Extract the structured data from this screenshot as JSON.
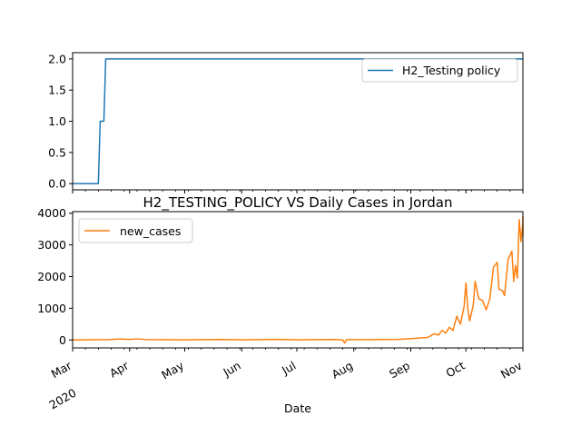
{
  "chart_data": [
    {
      "type": "line",
      "title": "",
      "xlabel": "",
      "ylabel": "",
      "x_range": [
        "2020-03-01",
        "2020-11-01"
      ],
      "ylim": [
        -0.1,
        2.1
      ],
      "yticks": [
        "0.0",
        "0.5",
        "1.0",
        "1.5",
        "2.0"
      ],
      "legend_position": "upper right",
      "series": [
        {
          "name": "H2_Testing policy",
          "color": "#1f77b4",
          "points": [
            {
              "x": "2020-03-01",
              "y": 0
            },
            {
              "x": "2020-03-15",
              "y": 0
            },
            {
              "x": "2020-03-16",
              "y": 1
            },
            {
              "x": "2020-03-18",
              "y": 1
            },
            {
              "x": "2020-03-19",
              "y": 2
            },
            {
              "x": "2020-11-01",
              "y": 2
            }
          ]
        }
      ]
    },
    {
      "type": "line",
      "title": "H2_TESTING_POLICY VS Daily Cases in Jordan",
      "xlabel": "Date",
      "ylabel": "",
      "x_range": [
        "2020-03-01",
        "2020-11-01"
      ],
      "ylim": [
        -250,
        4050
      ],
      "yticks": [
        "0",
        "1000",
        "2000",
        "3000",
        "4000"
      ],
      "legend_position": "upper left",
      "x_tick_labels": [
        {
          "date": "2020-03-01",
          "label": "Mar",
          "sub": "2020"
        },
        {
          "date": "2020-04-01",
          "label": "Apr",
          "sub": ""
        },
        {
          "date": "2020-05-01",
          "label": "May",
          "sub": ""
        },
        {
          "date": "2020-06-01",
          "label": "Jun",
          "sub": ""
        },
        {
          "date": "2020-07-01",
          "label": "Jul",
          "sub": ""
        },
        {
          "date": "2020-08-01",
          "label": "Aug",
          "sub": ""
        },
        {
          "date": "2020-09-01",
          "label": "Sep",
          "sub": ""
        },
        {
          "date": "2020-10-01",
          "label": "Oct",
          "sub": ""
        },
        {
          "date": "2020-11-01",
          "label": "Nov",
          "sub": ""
        }
      ],
      "series": [
        {
          "name": "new_cases",
          "color": "#ff7f0e",
          "points": [
            {
              "x": "2020-03-01",
              "y": 0
            },
            {
              "x": "2020-03-20",
              "y": 10
            },
            {
              "x": "2020-03-28",
              "y": 30
            },
            {
              "x": "2020-04-01",
              "y": 15
            },
            {
              "x": "2020-04-05",
              "y": 35
            },
            {
              "x": "2020-04-10",
              "y": 10
            },
            {
              "x": "2020-05-01",
              "y": 5
            },
            {
              "x": "2020-05-20",
              "y": 15
            },
            {
              "x": "2020-06-01",
              "y": 5
            },
            {
              "x": "2020-06-20",
              "y": 20
            },
            {
              "x": "2020-07-01",
              "y": 5
            },
            {
              "x": "2020-07-20",
              "y": 15
            },
            {
              "x": "2020-07-26",
              "y": 0
            },
            {
              "x": "2020-07-27",
              "y": -100
            },
            {
              "x": "2020-07-28",
              "y": 10
            },
            {
              "x": "2020-08-10",
              "y": 10
            },
            {
              "x": "2020-08-25",
              "y": 20
            },
            {
              "x": "2020-09-01",
              "y": 40
            },
            {
              "x": "2020-09-10",
              "y": 80
            },
            {
              "x": "2020-09-14",
              "y": 200
            },
            {
              "x": "2020-09-16",
              "y": 150
            },
            {
              "x": "2020-09-18",
              "y": 300
            },
            {
              "x": "2020-09-20",
              "y": 220
            },
            {
              "x": "2020-09-22",
              "y": 400
            },
            {
              "x": "2020-09-24",
              "y": 300
            },
            {
              "x": "2020-09-26",
              "y": 750
            },
            {
              "x": "2020-09-28",
              "y": 500
            },
            {
              "x": "2020-09-30",
              "y": 1050
            },
            {
              "x": "2020-10-01",
              "y": 1800
            },
            {
              "x": "2020-10-02",
              "y": 1000
            },
            {
              "x": "2020-10-03",
              "y": 600
            },
            {
              "x": "2020-10-05",
              "y": 1100
            },
            {
              "x": "2020-10-06",
              "y": 1850
            },
            {
              "x": "2020-10-08",
              "y": 1300
            },
            {
              "x": "2020-10-10",
              "y": 1250
            },
            {
              "x": "2020-10-12",
              "y": 950
            },
            {
              "x": "2020-10-14",
              "y": 1300
            },
            {
              "x": "2020-10-16",
              "y": 2300
            },
            {
              "x": "2020-10-18",
              "y": 2450
            },
            {
              "x": "2020-10-19",
              "y": 1600
            },
            {
              "x": "2020-10-21",
              "y": 1550
            },
            {
              "x": "2020-10-22",
              "y": 1400
            },
            {
              "x": "2020-10-24",
              "y": 2550
            },
            {
              "x": "2020-10-26",
              "y": 2800
            },
            {
              "x": "2020-10-27",
              "y": 1850
            },
            {
              "x": "2020-10-28",
              "y": 2350
            },
            {
              "x": "2020-10-29",
              "y": 1950
            },
            {
              "x": "2020-10-30",
              "y": 3800
            },
            {
              "x": "2020-10-31",
              "y": 3100
            },
            {
              "x": "2020-11-01",
              "y": 3700
            },
            {
              "x": "2020-11-02",
              "y": 3900
            },
            {
              "x": "2020-11-03",
              "y": 3300
            },
            {
              "x": "2020-11-04",
              "y": 3300
            }
          ]
        }
      ]
    }
  ]
}
